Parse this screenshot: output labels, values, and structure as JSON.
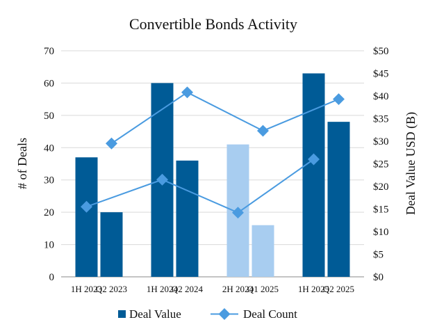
{
  "chart_data": {
    "type": "bar",
    "title": "Convertible Bonds Activity",
    "categories": [
      "1H 2023",
      "Q2 2023",
      "1H 2024",
      "Q2 2024",
      "2H 2024",
      "Q1 2025",
      "1H 2025",
      "Q2 2025"
    ],
    "ylabel_left": "# of Deals",
    "ylabel_right": "Deal Value USD (B)",
    "ylim_left": [
      0,
      70
    ],
    "ylim_right": [
      0,
      50
    ],
    "yticks_left": [
      "0",
      "10",
      "20",
      "30",
      "40",
      "50",
      "60",
      "70"
    ],
    "yticks_right": [
      "$0",
      "$5",
      "$10",
      "$15",
      "$20",
      "$25",
      "$30",
      "$35",
      "$40",
      "$45",
      "$50"
    ],
    "grid": true,
    "legend_position": "bottom",
    "series": [
      {
        "name": "Deal Value",
        "type": "bar",
        "axis": "left",
        "values": [
          37,
          20,
          60,
          36,
          41,
          16,
          63,
          48
        ],
        "colors": [
          "#005b96",
          "#005b96",
          "#005b96",
          "#005b96",
          "#a8cdf0",
          "#a8cdf0",
          "#005b96",
          "#005b96"
        ]
      },
      {
        "name": "Deal Count",
        "type": "line",
        "axis": "right",
        "color": "#4a9be0",
        "segments": [
          {
            "x_index": [
              0,
              2,
              4,
              6
            ],
            "values": [
              15.5,
              21.5,
              14.2,
              26
            ]
          },
          {
            "x_index": [
              1,
              3,
              5,
              7
            ],
            "values": [
              29.5,
              40.8,
              32.3,
              39.3
            ]
          }
        ]
      }
    ]
  },
  "legend": {
    "items": [
      "Deal Value",
      "Deal Count"
    ]
  }
}
